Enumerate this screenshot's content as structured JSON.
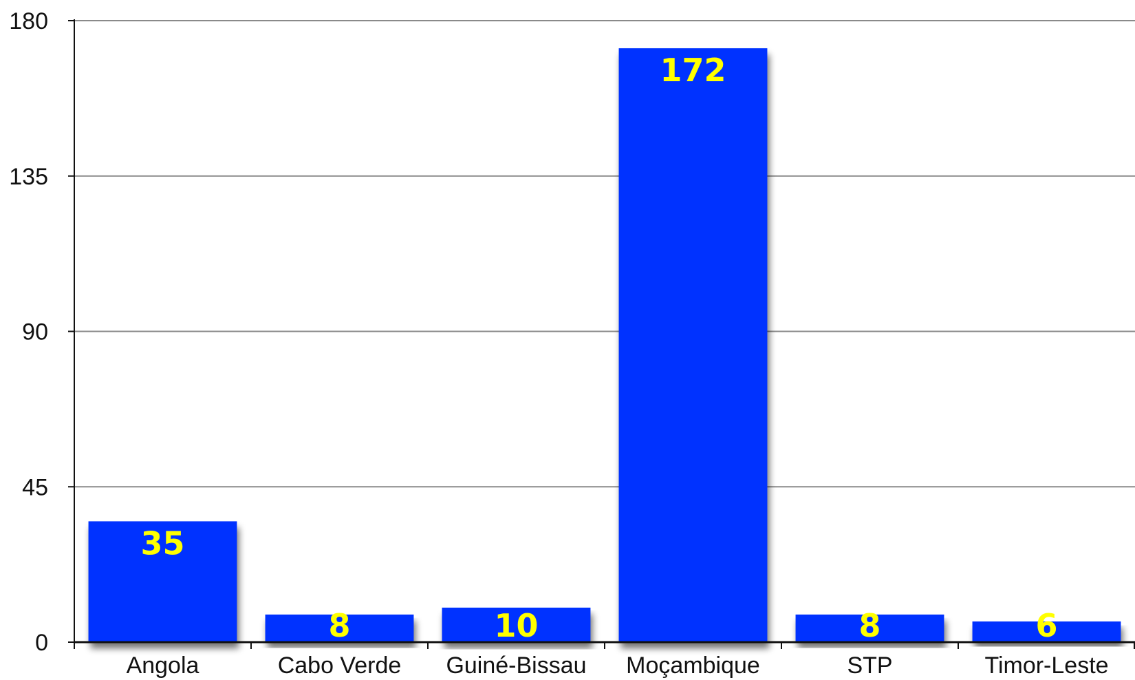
{
  "chart_data": {
    "type": "bar",
    "title": "",
    "xlabel": "",
    "ylabel": "",
    "categories": [
      "Angola",
      "Cabo Verde",
      "Guiné-Bissau",
      "Moçambique",
      "STP",
      "Timor-Leste"
    ],
    "values": [
      35,
      8,
      10,
      172,
      8,
      6
    ],
    "data_labels": [
      "35",
      "8",
      "10",
      "172",
      "8",
      "6"
    ],
    "ylim": [
      0,
      180
    ],
    "yticks": [
      0,
      45,
      90,
      135,
      180
    ],
    "ytick_labels": [
      "0",
      "45",
      "90",
      "135",
      "180"
    ],
    "grid": true,
    "legend": "none",
    "colors": {
      "bar": "#0533FF",
      "data_label": "#FFFF00",
      "grid": "#8a8a8a",
      "axis": "#111111"
    }
  }
}
